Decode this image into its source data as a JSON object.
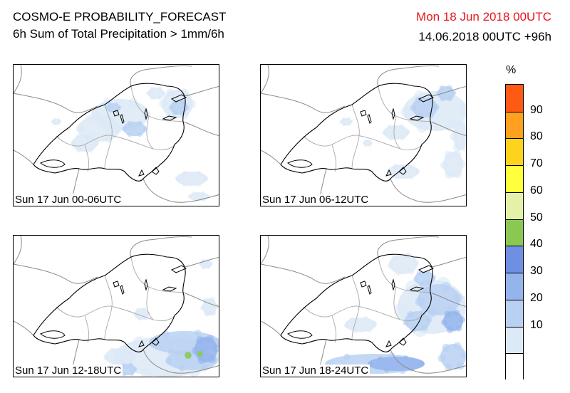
{
  "header": {
    "title": "COSMO-E PROBABILITY_FORECAST",
    "subtitle": "6h Sum of Total Precipitation > 1mm/6h",
    "valid_date": "Mon 18 Jun 2018 00UTC",
    "run_info": "14.06.2018 00UTC +96h"
  },
  "panels": [
    {
      "label": "Sun 17 Jun 00-06UTC"
    },
    {
      "label": "Sun 17 Jun 06-12UTC"
    },
    {
      "label": "Sun 17 Jun 12-18UTC"
    },
    {
      "label": "Sun 17 Jun 18-24UTC"
    }
  ],
  "colorbar": {
    "unit": "%",
    "ticks": [
      "90",
      "80",
      "70",
      "60",
      "50",
      "40",
      "30",
      "20",
      "10"
    ],
    "colors": [
      "#ffffff",
      "#dce9f6",
      "#b8d1f2",
      "#94b4ec",
      "#6f8fe2",
      "#8bc852",
      "#e3f2a8",
      "#ffff3c",
      "#ffd21e",
      "#ffa01e",
      "#ff5a14"
    ]
  }
}
